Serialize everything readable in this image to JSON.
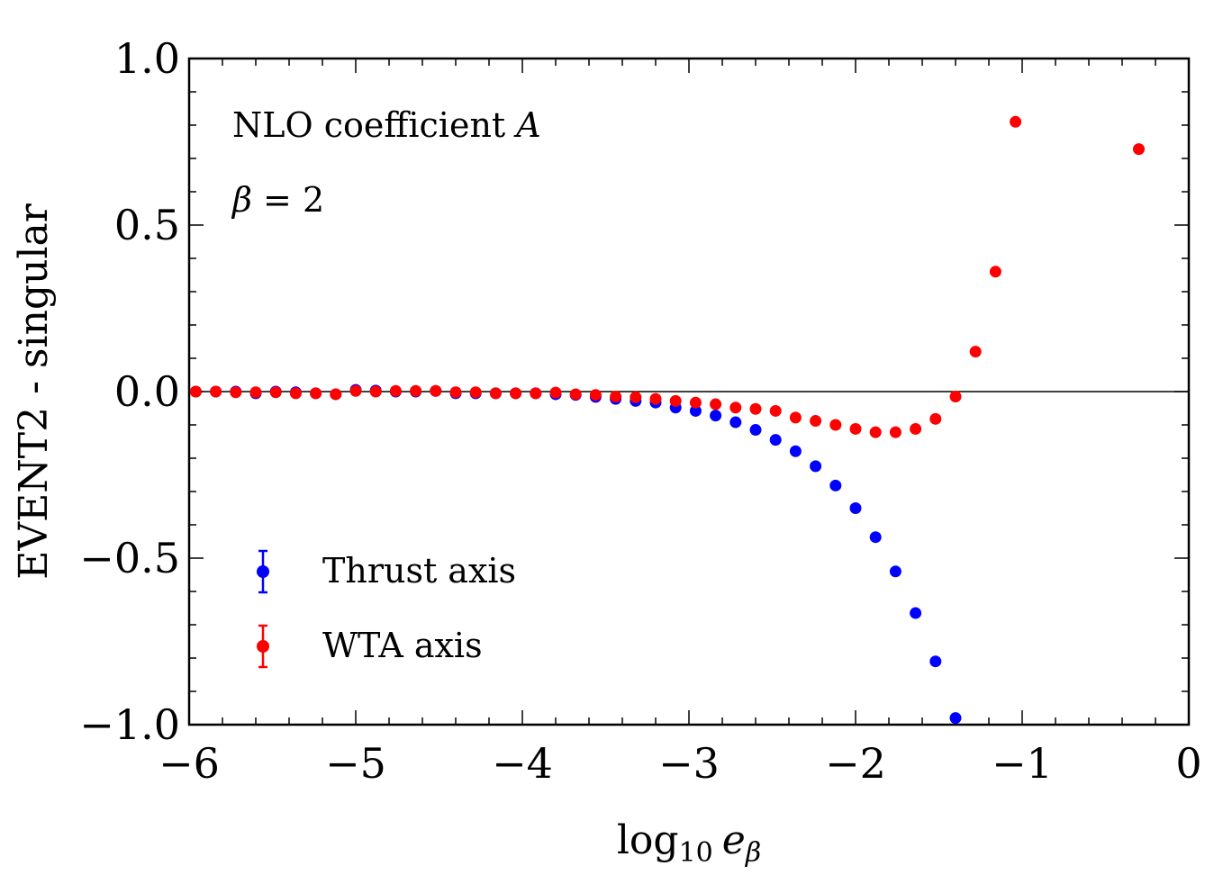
{
  "chart_data": {
    "type": "scatter",
    "xlabel": "log",
    "xlabel_subscript": "10",
    "xlabel_var": "e",
    "xlabel_var_subscript": "β",
    "ylabel": "EVENT2 - singular",
    "xlim": [
      -6,
      0
    ],
    "ylim": [
      -1.0,
      1.0
    ],
    "x_ticks": [
      -6,
      -5,
      -4,
      -3,
      -2,
      -1,
      0
    ],
    "x_tick_labels": [
      "−6",
      "−5",
      "−4",
      "−3",
      "−2",
      "−1",
      "0"
    ],
    "y_ticks": [
      -1.0,
      -0.5,
      0.0,
      0.5,
      1.0
    ],
    "y_tick_labels": [
      "−1.0",
      "−0.5",
      "0.0",
      "0.5",
      "1.0"
    ],
    "reference_line_y": 0.0,
    "annotations": {
      "line1_prefix": "NLO coefficient ",
      "line1_italic": "A",
      "line2_italic": "β",
      "line2_suffix": " = 2"
    },
    "legend_position": "bottom-left",
    "series": [
      {
        "name": "Thrust axis",
        "color": "#0000ff",
        "x": [
          -5.96,
          -5.84,
          -5.72,
          -5.6,
          -5.48,
          -5.36,
          -5.24,
          -5.12,
          -5.0,
          -4.88,
          -4.76,
          -4.64,
          -4.52,
          -4.4,
          -4.28,
          -4.16,
          -4.04,
          -3.92,
          -3.8,
          -3.68,
          -3.56,
          -3.44,
          -3.32,
          -3.2,
          -3.08,
          -2.96,
          -2.84,
          -2.72,
          -2.6,
          -2.48,
          -2.36,
          -2.24,
          -2.12,
          -2.0,
          -1.88,
          -1.76,
          -1.64,
          -1.52,
          -1.4
        ],
        "y": [
          0.0,
          0.0,
          0.0,
          -0.005,
          0.0,
          -0.002,
          -0.005,
          -0.008,
          0.005,
          0.003,
          0.0,
          0.0,
          0.002,
          -0.005,
          -0.005,
          -0.005,
          -0.005,
          -0.005,
          -0.008,
          -0.01,
          -0.016,
          -0.022,
          -0.028,
          -0.033,
          -0.048,
          -0.058,
          -0.072,
          -0.092,
          -0.115,
          -0.145,
          -0.179,
          -0.224,
          -0.282,
          -0.35,
          -0.437,
          -0.54,
          -0.665,
          -0.81,
          -0.98
        ]
      },
      {
        "name": "WTA axis",
        "color": "#ff0000",
        "x": [
          -5.96,
          -5.84,
          -5.72,
          -5.6,
          -5.48,
          -5.36,
          -5.24,
          -5.12,
          -5.0,
          -4.88,
          -4.76,
          -4.64,
          -4.52,
          -4.4,
          -4.28,
          -4.16,
          -4.04,
          -3.92,
          -3.8,
          -3.68,
          -3.56,
          -3.44,
          -3.32,
          -3.2,
          -3.08,
          -2.96,
          -2.84,
          -2.72,
          -2.6,
          -2.48,
          -2.36,
          -2.24,
          -2.12,
          -2.0,
          -1.88,
          -1.76,
          -1.64,
          -1.52,
          -1.4,
          -1.28,
          -1.16,
          -1.04,
          -0.3
        ],
        "y": [
          0.0,
          0.0,
          -0.002,
          -0.002,
          -0.002,
          -0.005,
          -0.005,
          -0.008,
          0.002,
          0.0,
          0.002,
          0.002,
          0.002,
          -0.002,
          -0.002,
          -0.005,
          -0.005,
          -0.005,
          -0.003,
          -0.008,
          -0.01,
          -0.015,
          -0.017,
          -0.022,
          -0.028,
          -0.033,
          -0.038,
          -0.048,
          -0.052,
          -0.058,
          -0.078,
          -0.088,
          -0.1,
          -0.112,
          -0.122,
          -0.122,
          -0.112,
          -0.082,
          -0.015,
          0.12,
          0.36,
          0.81,
          0.728
        ]
      }
    ]
  }
}
